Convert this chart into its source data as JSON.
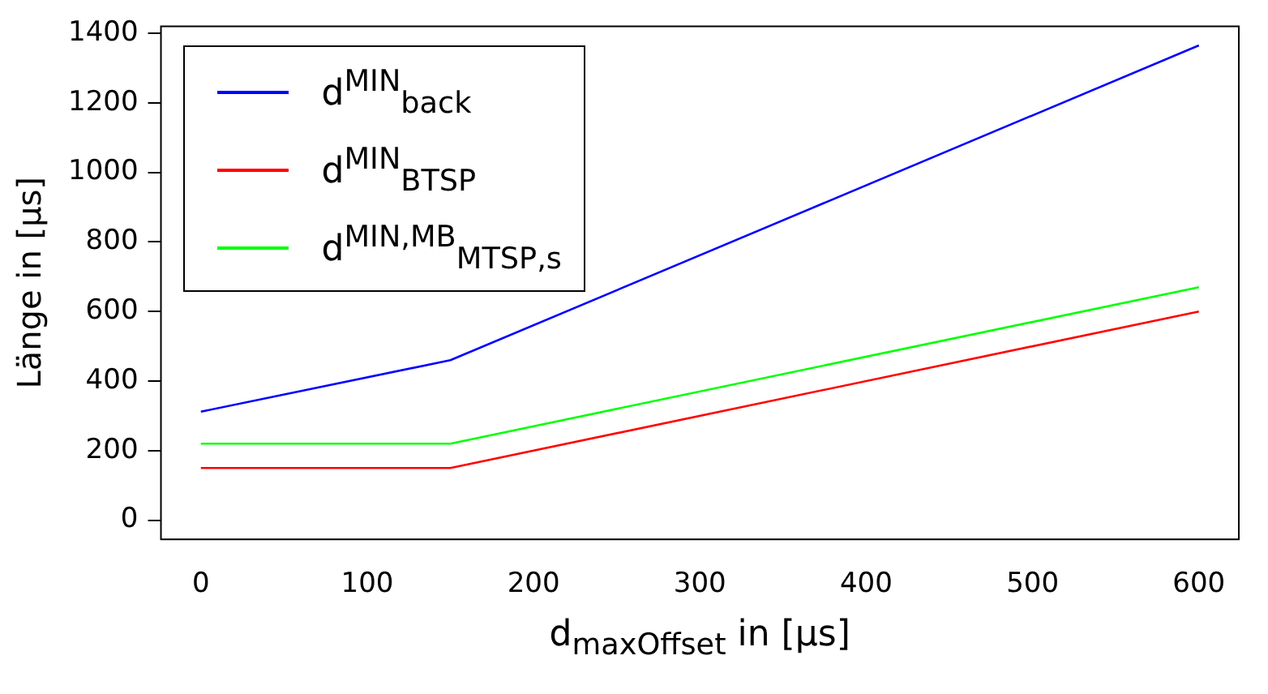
{
  "chart_data": {
    "type": "line",
    "xlabel": "d$_{maxOffset}$ in [µs]",
    "ylabel": "Länge in [µs]",
    "x": [
      0,
      150,
      600
    ],
    "series": [
      {
        "name": "d$^{MIN}$$_{back}$",
        "color": "#0000ff",
        "values": [
          312,
          460,
          1365
        ]
      },
      {
        "name": "d$^{MIN}$$_{BTSP}$",
        "color": "#ff0000",
        "values": [
          150,
          150,
          600
        ]
      },
      {
        "name": "d$^{MIN,MB}$$_{MTSP,s}$",
        "color": "#00ff00",
        "values": [
          220,
          220,
          670
        ]
      }
    ],
    "xlim": [
      -24,
      624
    ],
    "ylim": [
      -55,
      1420
    ],
    "xticks": [
      0,
      100,
      200,
      300,
      400,
      500,
      600
    ],
    "yticks": [
      0,
      200,
      400,
      600,
      800,
      1000,
      1200,
      1400
    ],
    "grid": false,
    "legend": "top left",
    "marker": "none",
    "line_style": "solid"
  }
}
